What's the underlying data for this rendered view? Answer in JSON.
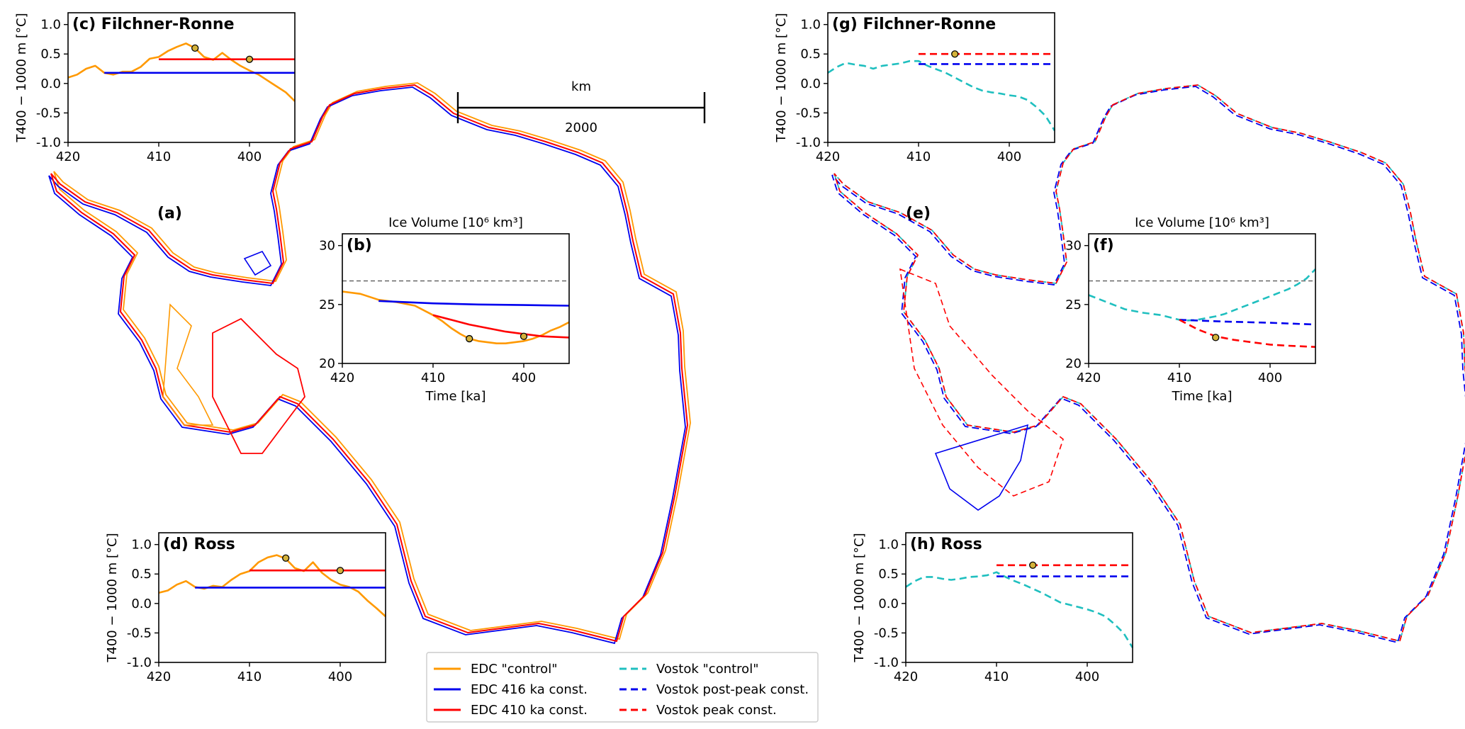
{
  "figure": {
    "panel_a": "(a)",
    "panel_e": "(e)",
    "scalebar_unit": "km",
    "scalebar_value": "2000"
  },
  "legend": [
    {
      "label": "EDC \"control\"",
      "color": "#ff9900",
      "dash": false
    },
    {
      "label": "EDC 416 ka const.",
      "color": "#0000ee",
      "dash": false
    },
    {
      "label": "EDC 410 ka const.",
      "color": "#ff0000",
      "dash": false
    },
    {
      "label": "Vostok \"control\"",
      "color": "#1fbfbf",
      "dash": true
    },
    {
      "label": "Vostok post-peak const.",
      "color": "#0000ee",
      "dash": true
    },
    {
      "label": "Vostok peak const.",
      "color": "#ff0000",
      "dash": true
    }
  ],
  "chart_data": [
    {
      "id": "c",
      "type": "line",
      "panel_label": "(c) Filchner-Ronne",
      "ylabel": "T400 − 1000 m [°C]",
      "xlabel": "",
      "xlim": [
        420,
        395
      ],
      "ylim": [
        -1.0,
        1.2
      ],
      "xticks": [
        420,
        410,
        400
      ],
      "yticks": [
        -1.0,
        -0.5,
        0.0,
        0.5,
        1.0
      ],
      "series": [
        {
          "name": "EDC \"control\"",
          "color": "#ff9900",
          "dash": false,
          "x": [
            420,
            419,
            418,
            417,
            416,
            415,
            414,
            413,
            412,
            411,
            410,
            409,
            408,
            407,
            406,
            405,
            404,
            403,
            402,
            401,
            400,
            399,
            398,
            397,
            396,
            395
          ],
          "y": [
            0.1,
            0.15,
            0.25,
            0.3,
            0.18,
            0.15,
            0.2,
            0.2,
            0.28,
            0.42,
            0.45,
            0.55,
            0.62,
            0.68,
            0.6,
            0.45,
            0.4,
            0.52,
            0.4,
            0.3,
            0.22,
            0.15,
            0.05,
            -0.05,
            -0.15,
            -0.3
          ]
        },
        {
          "name": "EDC 416 ka const.",
          "color": "#0000ee",
          "dash": false,
          "x": [
            416,
            395
          ],
          "y": [
            0.18,
            0.18
          ]
        },
        {
          "name": "EDC 410 ka const.",
          "color": "#ff0000",
          "dash": false,
          "x": [
            410,
            395
          ],
          "y": [
            0.41,
            0.41
          ]
        }
      ],
      "markers": [
        {
          "x": 406,
          "y": 0.6
        },
        {
          "x": 400,
          "y": 0.41
        }
      ]
    },
    {
      "id": "d",
      "type": "line",
      "panel_label": "(d) Ross",
      "ylabel": "T400 − 1000 m [°C]",
      "xlabel": "",
      "xlim": [
        420,
        395
      ],
      "ylim": [
        -1.0,
        1.2
      ],
      "xticks": [
        420,
        410,
        400
      ],
      "yticks": [
        -1.0,
        -0.5,
        0.0,
        0.5,
        1.0
      ],
      "series": [
        {
          "name": "EDC \"control\"",
          "color": "#ff9900",
          "dash": false,
          "x": [
            420,
            419,
            418,
            417,
            416,
            415,
            414,
            413,
            412,
            411,
            410,
            409,
            408,
            407,
            406,
            405,
            404,
            403,
            402,
            401,
            400,
            399,
            398,
            397,
            396,
            395
          ],
          "y": [
            0.18,
            0.22,
            0.32,
            0.38,
            0.28,
            0.25,
            0.3,
            0.28,
            0.4,
            0.5,
            0.55,
            0.7,
            0.78,
            0.82,
            0.76,
            0.6,
            0.55,
            0.7,
            0.52,
            0.4,
            0.32,
            0.28,
            0.2,
            0.05,
            -0.08,
            -0.22
          ]
        },
        {
          "name": "EDC 416 ka const.",
          "color": "#0000ee",
          "dash": false,
          "x": [
            416,
            395
          ],
          "y": [
            0.27,
            0.27
          ]
        },
        {
          "name": "EDC 410 ka const.",
          "color": "#ff0000",
          "dash": false,
          "x": [
            410,
            395
          ],
          "y": [
            0.56,
            0.56
          ]
        }
      ],
      "markers": [
        {
          "x": 406,
          "y": 0.77
        },
        {
          "x": 400,
          "y": 0.56
        }
      ]
    },
    {
      "id": "b",
      "type": "line",
      "panel_label": "(b)",
      "title": "Ice Volume [10⁶ km³]",
      "xlabel": "Time [ka]",
      "ylabel": "",
      "xlim": [
        420,
        395
      ],
      "ylim": [
        20,
        31
      ],
      "xticks": [
        420,
        410,
        400
      ],
      "yticks": [
        20,
        25,
        30
      ],
      "reference_line": 27,
      "series": [
        {
          "name": "EDC \"control\"",
          "color": "#ff9900",
          "dash": false,
          "x": [
            420,
            418,
            416,
            414,
            412,
            410,
            409,
            408,
            407,
            406,
            405,
            404,
            403,
            402,
            401,
            400,
            399,
            398,
            397,
            396,
            395
          ],
          "y": [
            26.1,
            25.9,
            25.4,
            25.2,
            24.9,
            24.1,
            23.6,
            23.0,
            22.5,
            22.1,
            21.9,
            21.8,
            21.7,
            21.7,
            21.8,
            21.9,
            22.1,
            22.4,
            22.8,
            23.1,
            23.5
          ]
        },
        {
          "name": "EDC 416 ka const.",
          "color": "#0000ee",
          "dash": false,
          "x": [
            416,
            410,
            405,
            400,
            395
          ],
          "y": [
            25.3,
            25.1,
            25.0,
            24.95,
            24.9
          ]
        },
        {
          "name": "EDC 410 ka const.",
          "color": "#ff0000",
          "dash": false,
          "x": [
            410,
            408,
            406,
            404,
            402,
            400,
            398,
            395
          ],
          "y": [
            24.1,
            23.7,
            23.3,
            23.0,
            22.7,
            22.5,
            22.3,
            22.2
          ]
        }
      ],
      "markers": [
        {
          "x": 406,
          "y": 22.1
        },
        {
          "x": 400,
          "y": 22.3
        }
      ]
    },
    {
      "id": "g",
      "type": "line",
      "panel_label": "(g) Filchner-Ronne",
      "ylabel": "T400 − 1000 m [°C]",
      "xlabel": "",
      "xlim": [
        420,
        395
      ],
      "ylim": [
        -1.0,
        1.2
      ],
      "xticks": [
        420,
        410,
        400
      ],
      "yticks": [
        -1.0,
        -0.5,
        0.0,
        0.5,
        1.0
      ],
      "series": [
        {
          "name": "Vostok \"control\"",
          "color": "#1fbfbf",
          "dash": true,
          "x": [
            420,
            419,
            418,
            417,
            416,
            415,
            414,
            413,
            412,
            411,
            410,
            409,
            408,
            407,
            406,
            405,
            404,
            403,
            402,
            401,
            400,
            399,
            398,
            397,
            396,
            395
          ],
          "y": [
            0.18,
            0.28,
            0.35,
            0.32,
            0.3,
            0.25,
            0.3,
            0.32,
            0.34,
            0.38,
            0.38,
            0.3,
            0.24,
            0.18,
            0.1,
            0.02,
            -0.06,
            -0.12,
            -0.15,
            -0.17,
            -0.2,
            -0.22,
            -0.28,
            -0.4,
            -0.55,
            -0.8
          ]
        },
        {
          "name": "Vostok post-peak const.",
          "color": "#0000ee",
          "dash": true,
          "x": [
            410,
            395
          ],
          "y": [
            0.33,
            0.33
          ]
        },
        {
          "name": "Vostok peak const.",
          "color": "#ff0000",
          "dash": true,
          "x": [
            410,
            395
          ],
          "y": [
            0.5,
            0.5
          ]
        }
      ],
      "markers": [
        {
          "x": 406,
          "y": 0.5
        }
      ]
    },
    {
      "id": "h",
      "type": "line",
      "panel_label": "(h) Ross",
      "ylabel": "T400 − 1000 m [°C]",
      "xlabel": "",
      "xlim": [
        420,
        395
      ],
      "ylim": [
        -1.0,
        1.2
      ],
      "xticks": [
        420,
        410,
        400
      ],
      "yticks": [
        -1.0,
        -0.5,
        0.0,
        0.5,
        1.0
      ],
      "series": [
        {
          "name": "Vostok \"control\"",
          "color": "#1fbfbf",
          "dash": true,
          "x": [
            420,
            419,
            418,
            417,
            416,
            415,
            414,
            413,
            412,
            411,
            410,
            409,
            408,
            407,
            406,
            405,
            404,
            403,
            402,
            401,
            400,
            399,
            398,
            397,
            396,
            395
          ],
          "y": [
            0.28,
            0.38,
            0.45,
            0.45,
            0.42,
            0.4,
            0.42,
            0.45,
            0.46,
            0.48,
            0.53,
            0.45,
            0.38,
            0.32,
            0.25,
            0.18,
            0.1,
            0.02,
            -0.02,
            -0.06,
            -0.1,
            -0.15,
            -0.22,
            -0.35,
            -0.5,
            -0.75
          ]
        },
        {
          "name": "Vostok post-peak const.",
          "color": "#0000ee",
          "dash": true,
          "x": [
            410,
            395
          ],
          "y": [
            0.46,
            0.46
          ]
        },
        {
          "name": "Vostok peak const.",
          "color": "#ff0000",
          "dash": true,
          "x": [
            410,
            395
          ],
          "y": [
            0.65,
            0.65
          ]
        }
      ],
      "markers": [
        {
          "x": 406,
          "y": 0.65
        }
      ]
    },
    {
      "id": "f",
      "type": "line",
      "panel_label": "(f)",
      "title": "Ice Volume [10⁶ km³]",
      "xlabel": "Time [ka]",
      "ylabel": "",
      "xlim": [
        420,
        395
      ],
      "ylim": [
        20,
        31
      ],
      "xticks": [
        420,
        410,
        400
      ],
      "yticks": [
        20,
        25,
        30
      ],
      "reference_line": 27,
      "series": [
        {
          "name": "Vostok \"control\"",
          "color": "#1fbfbf",
          "dash": true,
          "x": [
            420,
            418,
            416,
            414,
            412,
            411,
            410,
            409,
            408,
            407,
            406,
            405,
            404,
            403,
            402,
            401,
            400,
            399,
            398,
            397,
            396,
            395
          ],
          "y": [
            25.8,
            25.2,
            24.6,
            24.3,
            24.1,
            23.9,
            23.7,
            23.65,
            23.7,
            23.85,
            24.0,
            24.2,
            24.5,
            24.8,
            25.1,
            25.4,
            25.7,
            26.0,
            26.3,
            26.7,
            27.2,
            28.0
          ]
        },
        {
          "name": "Vostok post-peak const.",
          "color": "#0000ee",
          "dash": true,
          "x": [
            410,
            405,
            400,
            395
          ],
          "y": [
            23.7,
            23.55,
            23.45,
            23.3
          ]
        },
        {
          "name": "Vostok peak const.",
          "color": "#ff0000",
          "dash": true,
          "x": [
            410,
            408,
            406,
            404,
            402,
            400,
            398,
            395
          ],
          "y": [
            23.7,
            22.9,
            22.3,
            22.0,
            21.8,
            21.6,
            21.5,
            21.4
          ]
        }
      ],
      "markers": [
        {
          "x": 406,
          "y": 22.2
        }
      ]
    }
  ]
}
